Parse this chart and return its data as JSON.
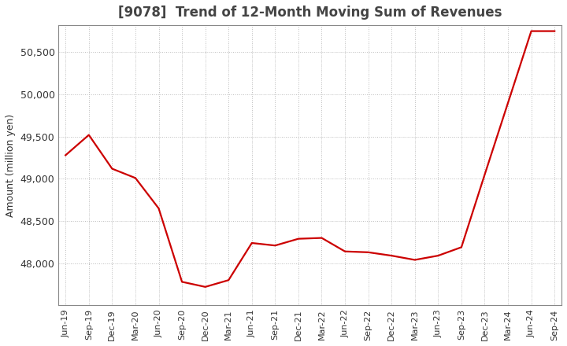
{
  "title": "[9078]  Trend of 12-Month Moving Sum of Revenues",
  "ylabel": "Amount (million yen)",
  "line_color": "#cc0000",
  "background_color": "#ffffff",
  "grid_color": "#bbbbbb",
  "x_labels": [
    "Jun-19",
    "Sep-19",
    "Dec-19",
    "Mar-20",
    "Jun-20",
    "Sep-20",
    "Dec-20",
    "Mar-21",
    "Jun-21",
    "Sep-21",
    "Dec-21",
    "Mar-22",
    "Jun-22",
    "Sep-22",
    "Dec-22",
    "Mar-23",
    "Jun-23",
    "Sep-23",
    "Dec-23",
    "Mar-24",
    "Jun-24",
    "Sep-24"
  ],
  "y_values": [
    49280,
    49520,
    49120,
    49010,
    48650,
    47780,
    47720,
    47800,
    48240,
    48210,
    48290,
    48300,
    48140,
    48130,
    48090,
    48040,
    48090,
    48190,
    49050,
    49900,
    50750,
    50750
  ],
  "ylim_min": 47500,
  "ylim_max": 50820,
  "yticks": [
    48000,
    48500,
    49000,
    49500,
    50000,
    50500
  ]
}
